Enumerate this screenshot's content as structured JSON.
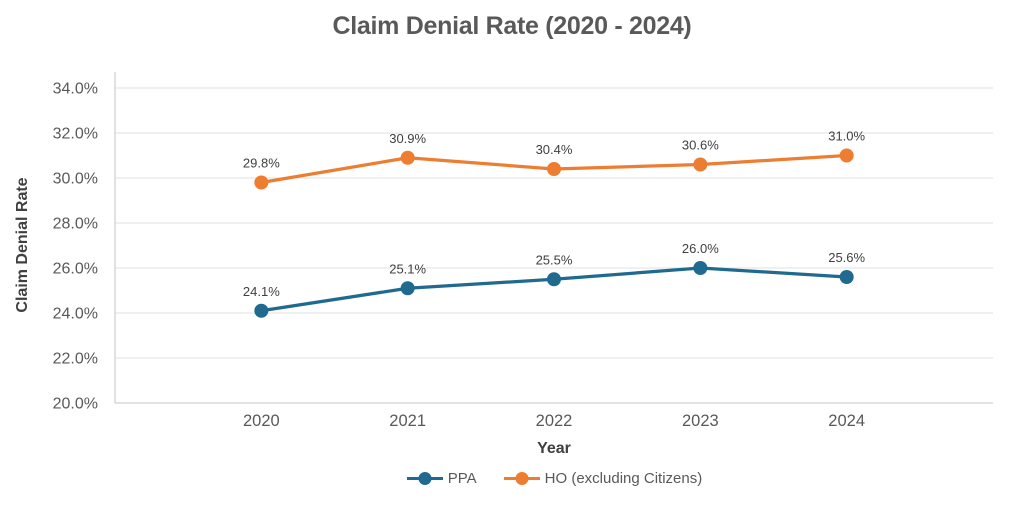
{
  "chart_data": {
    "type": "line",
    "title": "Claim Denial Rate (2020 - 2024)",
    "xlabel": "Year",
    "ylabel": "Claim Denial Rate",
    "categories": [
      "2020",
      "2021",
      "2022",
      "2023",
      "2024"
    ],
    "series": [
      {
        "name": "PPA",
        "color": "#1F6A8E",
        "values": [
          24.1,
          25.1,
          25.5,
          26.0,
          25.6
        ],
        "point_labels": [
          "24.1%",
          "25.1%",
          "25.5%",
          "26.0%",
          "25.6%"
        ]
      },
      {
        "name": "HO (excluding Citizens)",
        "color": "#ED7D31",
        "values": [
          29.8,
          30.9,
          30.4,
          30.6,
          31.0
        ],
        "point_labels": [
          "29.8%",
          "30.9%",
          "30.4%",
          "30.6%",
          "31.0%"
        ]
      }
    ],
    "y_ticks": [
      "20.0%",
      "22.0%",
      "24.0%",
      "26.0%",
      "28.0%",
      "30.0%",
      "32.0%",
      "34.0%"
    ],
    "ylim": [
      20,
      34.7
    ],
    "y_tick_step": 2,
    "grid": true,
    "legend_position": "bottom",
    "marker": "circle"
  }
}
